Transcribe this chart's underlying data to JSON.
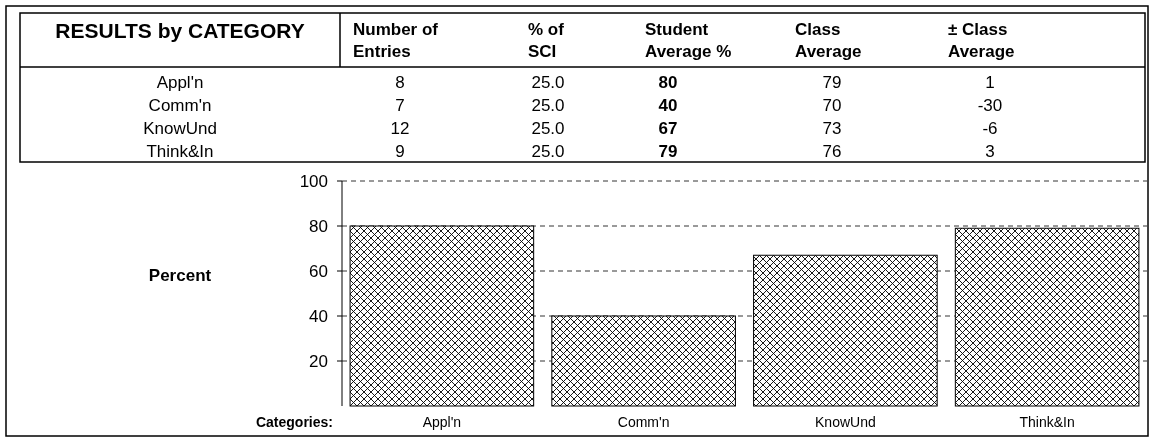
{
  "chart_data": [
    {
      "type": "other",
      "title": "RESULTS by CATEGORY",
      "categories": [
        "Appl'n",
        "Comm'n",
        "KnowUnd",
        "Think&In"
      ],
      "data_labels": true,
      "series": [
        {
          "name": "Number of\nEntries",
          "values": [
            8,
            7,
            12,
            9
          ]
        },
        {
          "name": "% of\nSCI",
          "values": [
            25.0,
            25.0,
            25.0,
            25.0
          ],
          "value_labels": [
            "25.0",
            "25.0",
            "25.0",
            "25.0"
          ]
        },
        {
          "name": "Student\nAverage %",
          "values": [
            80,
            40,
            67,
            79
          ]
        },
        {
          "name": "Class\nAverage",
          "values": [
            79,
            70,
            73,
            76
          ]
        },
        {
          "name": "± Class\nAverage",
          "values": [
            1,
            -30,
            -6,
            3
          ]
        }
      ]
    },
    {
      "type": "bar",
      "categories": [
        "Appl'n",
        "Comm'n",
        "KnowUnd",
        "Think&In"
      ],
      "values": [
        80,
        40,
        67,
        79
      ],
      "color": "#000000",
      "xlabel": "Categories:",
      "ylabel": "Percent",
      "ylim": [
        0,
        100
      ],
      "yticks": [
        20,
        40,
        60,
        80,
        100
      ],
      "grid": "y",
      "line_style": "dashed"
    }
  ]
}
